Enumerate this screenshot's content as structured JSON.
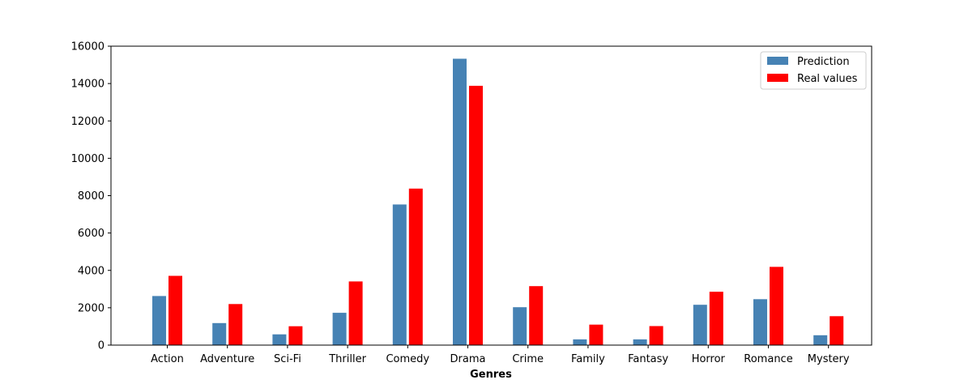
{
  "chart_data": {
    "type": "bar",
    "title": "",
    "xlabel": "Genres",
    "ylabel": "",
    "categories": [
      "Action",
      "Adventure",
      "Sci-Fi",
      "Thriller",
      "Comedy",
      "Drama",
      "Crime",
      "Family",
      "Fantasy",
      "Horror",
      "Romance",
      "Mystery"
    ],
    "series": [
      {
        "name": "Prediction",
        "color": "#4682b4",
        "values": [
          2650,
          1200,
          600,
          1750,
          7550,
          15350,
          2050,
          330,
          330,
          2180,
          2480,
          550
        ]
      },
      {
        "name": "Real values",
        "color": "#ff0000",
        "values": [
          3730,
          2220,
          1030,
          3430,
          8400,
          13900,
          3180,
          1120,
          1040,
          2880,
          4210,
          1570
        ]
      }
    ],
    "ylim": [
      0,
      16000
    ],
    "yticks": [
      0,
      2000,
      4000,
      6000,
      8000,
      10000,
      12000,
      14000,
      16000
    ],
    "grid": false,
    "legend_position": "top-right"
  }
}
